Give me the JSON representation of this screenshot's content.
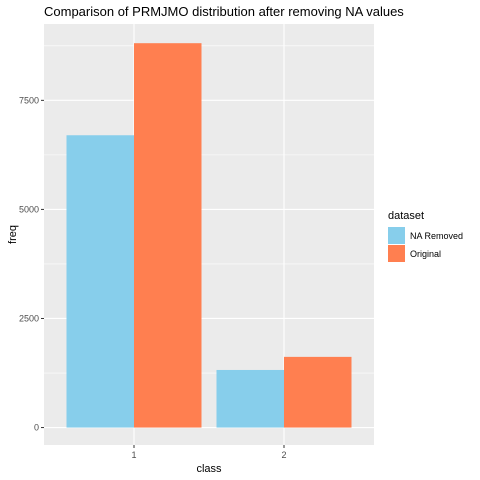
{
  "chart_data": {
    "type": "bar",
    "title": "Comparison of PRMJMO distribution after removing NA values",
    "xlabel": "class",
    "ylabel": "freq",
    "categories": [
      "1",
      "2"
    ],
    "series": [
      {
        "name": "NA Removed",
        "values": [
          6700,
          1320
        ],
        "color": "#87CEEB"
      },
      {
        "name": "Original",
        "values": [
          8810,
          1620
        ],
        "color": "#FF7F50"
      }
    ],
    "ylim": [
      -400,
      9250
    ],
    "yticks": [
      0,
      2500,
      5000,
      7500
    ],
    "ytick_labels": [
      "0",
      "2500",
      "5000",
      "7500"
    ],
    "grid": true,
    "panel_background": "#EBEBEB",
    "legend": {
      "title": "dataset",
      "position": "right"
    }
  }
}
